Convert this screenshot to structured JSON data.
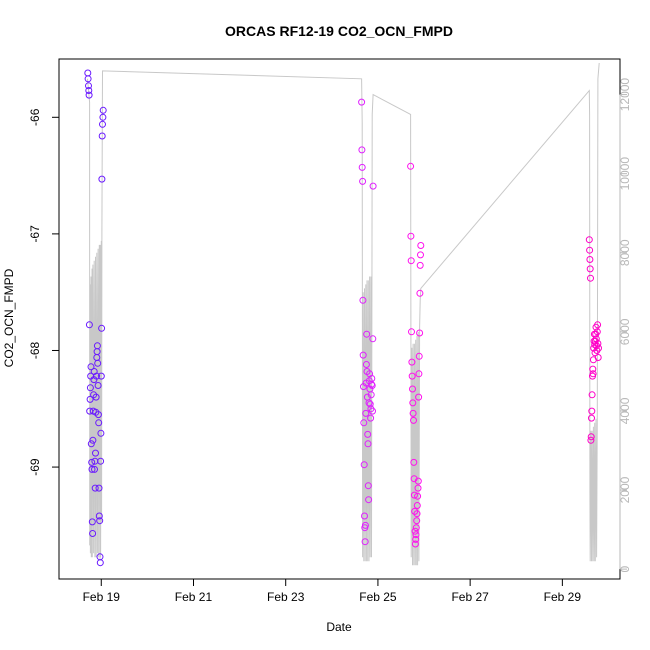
{
  "chart_data": {
    "type": "scatter",
    "title": "ORCAS RF12-19 CO2_OCN_FMPD",
    "xlabel": "Date",
    "ylabel": "CO2_OCN_FMPD",
    "xlim": [
      "2016-02-18T02:00",
      "2016-03-01T06:00"
    ],
    "ylim": [
      -69.96,
      -65.5
    ],
    "y2lim": [
      -250,
      12900
    ],
    "x_ticks": [
      {
        "date": "2016-02-19",
        "label": "Feb 19"
      },
      {
        "date": "2016-02-21",
        "label": "Feb 21"
      },
      {
        "date": "2016-02-23",
        "label": "Feb 23"
      },
      {
        "date": "2016-02-25",
        "label": "Feb 25"
      },
      {
        "date": "2016-02-27",
        "label": "Feb 27"
      },
      {
        "date": "2016-02-29",
        "label": "Feb 29"
      }
    ],
    "y_ticks": [
      {
        "value": -66,
        "label": "-66"
      },
      {
        "value": -67,
        "label": "-67"
      },
      {
        "value": -68,
        "label": "-68"
      },
      {
        "value": -69,
        "label": "-69"
      }
    ],
    "y2_ticks": [
      {
        "value": 0,
        "label": "0"
      },
      {
        "value": 2000,
        "label": "2000"
      },
      {
        "value": 4000,
        "label": "4000"
      },
      {
        "value": 6000,
        "label": "6000"
      },
      {
        "value": 8000,
        "label": "8000"
      },
      {
        "value": 10000,
        "label": "10000"
      },
      {
        "value": 12000,
        "label": "12000"
      }
    ],
    "colors": {
      "point_start": "#5500ff",
      "point_end": "#ff00cc",
      "altitude_line": "#c8c8c8",
      "right_axis": "#b8b8b8",
      "axis": "#000000"
    },
    "grid": false,
    "legend": "none",
    "series": [
      {
        "flight": 1,
        "color": "#6a1aff",
        "points": [
          [
            "2016-02-18T17:00",
            -65.62
          ],
          [
            "2016-02-18T17:10",
            -65.67
          ],
          [
            "2016-02-18T17:20",
            -65.73
          ],
          [
            "2016-02-18T17:30",
            -65.77
          ],
          [
            "2016-02-18T17:40",
            -65.81
          ],
          [
            "2016-02-18T17:50",
            -67.78
          ],
          [
            "2016-02-18T18:00",
            -68.52
          ],
          [
            "2016-02-18T18:10",
            -68.42
          ],
          [
            "2016-02-18T18:20",
            -68.32
          ],
          [
            "2016-02-18T18:30",
            -68.22
          ],
          [
            "2016-02-18T18:40",
            -68.14
          ],
          [
            "2016-02-18T18:50",
            -68.8
          ],
          [
            "2016-02-18T19:00",
            -68.96
          ],
          [
            "2016-02-18T19:10",
            -69.02
          ],
          [
            "2016-02-18T19:20",
            -69.47
          ],
          [
            "2016-02-18T19:30",
            -69.57
          ],
          [
            "2016-02-18T19:40",
            -68.77
          ],
          [
            "2016-02-18T19:50",
            -68.52
          ],
          [
            "2016-02-18T20:00",
            -68.38
          ],
          [
            "2016-02-18T20:10",
            -68.25
          ],
          [
            "2016-02-18T20:20",
            -68.18
          ],
          [
            "2016-02-18T20:30",
            -69.02
          ],
          [
            "2016-02-18T20:40",
            -68.95
          ],
          [
            "2016-02-18T20:50",
            -69.18
          ],
          [
            "2016-02-18T21:00",
            -68.88
          ],
          [
            "2016-02-18T21:10",
            -68.53
          ],
          [
            "2016-02-18T21:20",
            -68.4
          ],
          [
            "2016-02-18T21:30",
            -68.22
          ],
          [
            "2016-02-18T21:40",
            -68.06
          ],
          [
            "2016-02-18T21:50",
            -68.01
          ],
          [
            "2016-02-18T22:00",
            -67.96
          ],
          [
            "2016-02-18T22:10",
            -68.11
          ],
          [
            "2016-02-18T22:20",
            -68.3
          ],
          [
            "2016-02-18T22:30",
            -68.55
          ],
          [
            "2016-02-18T22:40",
            -68.62
          ],
          [
            "2016-02-18T22:50",
            -69.18
          ],
          [
            "2016-02-18T23:00",
            -69.42
          ],
          [
            "2016-02-18T23:10",
            -69.46
          ],
          [
            "2016-02-18T23:20",
            -69.77
          ],
          [
            "2016-02-18T23:30",
            -69.82
          ],
          [
            "2016-02-18T23:40",
            -68.95
          ],
          [
            "2016-02-18T23:50",
            -68.71
          ],
          [
            "2016-02-19T00:00",
            -68.22
          ],
          [
            "2016-02-19T00:10",
            -67.81
          ],
          [
            "2016-02-19T00:20",
            -66.53
          ],
          [
            "2016-02-19T00:30",
            -66.16
          ],
          [
            "2016-02-19T00:40",
            -66.06
          ],
          [
            "2016-02-19T00:50",
            -66.0
          ],
          [
            "2016-02-19T01:00",
            -65.94
          ]
        ]
      },
      {
        "flight": 2,
        "color": "#e020ff",
        "points": [
          [
            "2016-02-24T15:30",
            -65.87
          ],
          [
            "2016-02-24T15:40",
            -66.28
          ],
          [
            "2016-02-24T15:50",
            -66.43
          ],
          [
            "2016-02-24T16:00",
            -66.55
          ],
          [
            "2016-02-24T16:10",
            -67.57
          ],
          [
            "2016-02-24T16:20",
            -68.04
          ],
          [
            "2016-02-24T16:30",
            -68.31
          ],
          [
            "2016-02-24T16:40",
            -68.62
          ],
          [
            "2016-02-24T16:50",
            -68.98
          ],
          [
            "2016-02-24T17:00",
            -69.42
          ],
          [
            "2016-02-24T17:10",
            -69.52
          ],
          [
            "2016-02-24T17:20",
            -69.64
          ],
          [
            "2016-02-24T17:30",
            -69.5
          ],
          [
            "2016-02-24T17:40",
            -68.54
          ],
          [
            "2016-02-24T17:50",
            -68.28
          ],
          [
            "2016-02-24T18:00",
            -68.12
          ],
          [
            "2016-02-24T18:10",
            -67.86
          ],
          [
            "2016-02-24T18:20",
            -68.18
          ],
          [
            "2016-02-24T18:30",
            -68.4
          ],
          [
            "2016-02-24T18:40",
            -68.72
          ],
          [
            "2016-02-24T18:50",
            -68.8
          ],
          [
            "2016-02-24T19:00",
            -69.16
          ],
          [
            "2016-02-24T19:10",
            -69.28
          ],
          [
            "2016-02-24T19:20",
            -68.45
          ],
          [
            "2016-02-24T19:30",
            -68.26
          ],
          [
            "2016-02-24T19:40",
            -68.2
          ],
          [
            "2016-02-24T19:50",
            -68.33
          ],
          [
            "2016-02-24T20:00",
            -68.46
          ],
          [
            "2016-02-24T20:10",
            -68.58
          ],
          [
            "2016-02-24T20:20",
            -68.5
          ],
          [
            "2016-02-24T20:30",
            -68.38
          ],
          [
            "2016-02-24T20:40",
            -68.29
          ],
          [
            "2016-02-24T20:50",
            -68.24
          ],
          [
            "2016-02-24T21:00",
            -68.3
          ],
          [
            "2016-02-24T21:10",
            -68.52
          ],
          [
            "2016-02-24T21:20",
            -67.9
          ],
          [
            "2016-02-24T21:30",
            -66.59
          ]
        ]
      },
      {
        "flight": 3,
        "color": "#ff10ee",
        "points": [
          [
            "2016-02-25T17:00",
            -66.42
          ],
          [
            "2016-02-25T17:10",
            -67.02
          ],
          [
            "2016-02-25T17:20",
            -67.23
          ],
          [
            "2016-02-25T17:30",
            -67.84
          ],
          [
            "2016-02-25T17:40",
            -68.1
          ],
          [
            "2016-02-25T17:50",
            -68.22
          ],
          [
            "2016-02-25T18:00",
            -68.33
          ],
          [
            "2016-02-25T18:10",
            -68.45
          ],
          [
            "2016-02-25T18:20",
            -68.54
          ],
          [
            "2016-02-25T18:30",
            -68.6
          ],
          [
            "2016-02-25T18:40",
            -68.96
          ],
          [
            "2016-02-25T18:50",
            -69.1
          ],
          [
            "2016-02-25T19:00",
            -69.24
          ],
          [
            "2016-02-25T19:10",
            -69.38
          ],
          [
            "2016-02-25T19:20",
            -69.55
          ],
          [
            "2016-02-25T19:30",
            -69.66
          ],
          [
            "2016-02-25T19:40",
            -69.62
          ],
          [
            "2016-02-25T19:50",
            -69.58
          ],
          [
            "2016-02-25T20:00",
            -69.52
          ],
          [
            "2016-02-25T20:10",
            -69.46
          ],
          [
            "2016-02-25T20:20",
            -69.4
          ],
          [
            "2016-02-25T20:30",
            -69.33
          ],
          [
            "2016-02-25T20:40",
            -69.25
          ],
          [
            "2016-02-25T20:50",
            -69.18
          ],
          [
            "2016-02-25T21:00",
            -69.12
          ],
          [
            "2016-02-25T21:10",
            -68.4
          ],
          [
            "2016-02-25T21:20",
            -68.2
          ],
          [
            "2016-02-25T21:30",
            -68.05
          ],
          [
            "2016-02-25T21:40",
            -67.85
          ],
          [
            "2016-02-25T21:50",
            -67.51
          ],
          [
            "2016-02-25T22:00",
            -67.27
          ],
          [
            "2016-02-25T22:10",
            -67.18
          ],
          [
            "2016-02-25T22:20",
            -67.1
          ]
        ]
      },
      {
        "flight": 4,
        "color": "#ff00c8",
        "points": [
          [
            "2016-02-29T14:00",
            -67.05
          ],
          [
            "2016-02-29T14:10",
            -67.14
          ],
          [
            "2016-02-29T14:20",
            -67.22
          ],
          [
            "2016-02-29T14:30",
            -67.3
          ],
          [
            "2016-02-29T14:40",
            -67.38
          ],
          [
            "2016-02-29T14:50",
            -68.77
          ],
          [
            "2016-02-29T15:00",
            -68.74
          ],
          [
            "2016-02-29T15:10",
            -68.58
          ],
          [
            "2016-02-29T15:20",
            -68.52
          ],
          [
            "2016-02-29T15:30",
            -68.38
          ],
          [
            "2016-02-29T15:40",
            -68.22
          ],
          [
            "2016-02-29T15:50",
            -68.16
          ],
          [
            "2016-02-29T16:00",
            -68.2
          ],
          [
            "2016-02-29T16:10",
            -68.08
          ],
          [
            "2016-02-29T16:20",
            -67.98
          ],
          [
            "2016-02-29T16:30",
            -67.92
          ],
          [
            "2016-02-29T16:40",
            -67.86
          ],
          [
            "2016-02-29T16:50",
            -67.95
          ],
          [
            "2016-02-29T17:00",
            -68.02
          ],
          [
            "2016-02-29T17:10",
            -67.92
          ],
          [
            "2016-02-29T17:20",
            -67.86
          ],
          [
            "2016-02-29T17:30",
            -67.8
          ],
          [
            "2016-02-29T17:40",
            -67.9
          ],
          [
            "2016-02-29T17:50",
            -67.96
          ],
          [
            "2016-02-29T18:00",
            -68.0
          ],
          [
            "2016-02-29T18:10",
            -67.84
          ],
          [
            "2016-02-29T18:20",
            -67.78
          ],
          [
            "2016-02-29T18:30",
            -67.94
          ],
          [
            "2016-02-29T18:40",
            -68.06
          ],
          [
            "2016-02-29T18:50",
            -67.98
          ]
        ]
      }
    ],
    "altitude_line": [
      [
        "2016-02-18T16:50",
        12400
      ],
      [
        "2016-02-18T17:55",
        11800
      ],
      [
        "2016-02-18T18:00",
        600
      ],
      [
        "2016-02-18T18:10",
        7200
      ],
      [
        "2016-02-18T18:20",
        400
      ],
      [
        "2016-02-18T18:40",
        7400
      ],
      [
        "2016-02-18T18:50",
        300
      ],
      [
        "2016-02-18T19:10",
        7600
      ],
      [
        "2016-02-18T19:20",
        300
      ],
      [
        "2016-02-18T19:40",
        7700
      ],
      [
        "2016-02-18T20:00",
        400
      ],
      [
        "2016-02-18T20:20",
        7800
      ],
      [
        "2016-02-18T20:40",
        300
      ],
      [
        "2016-02-18T21:00",
        7900
      ],
      [
        "2016-02-18T21:20",
        300
      ],
      [
        "2016-02-18T21:40",
        8000
      ],
      [
        "2016-02-18T22:00",
        400
      ],
      [
        "2016-02-18T22:20",
        8100
      ],
      [
        "2016-02-18T22:40",
        300
      ],
      [
        "2016-02-18T23:00",
        8200
      ],
      [
        "2016-02-18T23:20",
        250
      ],
      [
        "2016-02-18T23:30",
        8200
      ],
      [
        "2016-02-18T23:40",
        300
      ],
      [
        "2016-02-19T00:00",
        8300
      ],
      [
        "2016-02-19T00:10",
        1200
      ],
      [
        "2016-02-19T00:20",
        8500
      ],
      [
        "2016-02-19T00:40",
        12600
      ],
      [
        "2016-02-24T15:30",
        12400
      ],
      [
        "2016-02-24T15:50",
        11300
      ],
      [
        "2016-02-24T16:00",
        300
      ],
      [
        "2016-02-24T16:20",
        7000
      ],
      [
        "2016-02-24T16:40",
        200
      ],
      [
        "2016-02-24T17:00",
        7100
      ],
      [
        "2016-02-24T17:20",
        200
      ],
      [
        "2016-02-24T17:40",
        7200
      ],
      [
        "2016-02-24T18:00",
        200
      ],
      [
        "2016-02-24T18:20",
        7300
      ],
      [
        "2016-02-24T18:40",
        200
      ],
      [
        "2016-02-24T19:00",
        7300
      ],
      [
        "2016-02-24T19:20",
        200
      ],
      [
        "2016-02-24T19:40",
        7400
      ],
      [
        "2016-02-24T20:00",
        300
      ],
      [
        "2016-02-24T20:20",
        7400
      ],
      [
        "2016-02-24T20:40",
        300
      ],
      [
        "2016-02-24T21:00",
        11500
      ],
      [
        "2016-02-24T21:30",
        12000
      ],
      [
        "2016-02-25T17:00",
        11500
      ],
      [
        "2016-02-25T17:20",
        300
      ],
      [
        "2016-02-25T17:40",
        5600
      ],
      [
        "2016-02-25T18:00",
        100
      ],
      [
        "2016-02-25T18:20",
        5700
      ],
      [
        "2016-02-25T18:40",
        100
      ],
      [
        "2016-02-25T19:00",
        5700
      ],
      [
        "2016-02-25T19:20",
        100
      ],
      [
        "2016-02-25T19:40",
        5800
      ],
      [
        "2016-02-25T20:00",
        100
      ],
      [
        "2016-02-25T20:20",
        5900
      ],
      [
        "2016-02-25T20:40",
        100
      ],
      [
        "2016-02-25T21:00",
        6000
      ],
      [
        "2016-02-25T21:20",
        200
      ],
      [
        "2016-02-25T21:40",
        6100
      ],
      [
        "2016-02-25T22:00",
        6800
      ],
      [
        "2016-02-25T22:20",
        7100
      ],
      [
        "2016-02-29T14:00",
        12100
      ],
      [
        "2016-02-29T14:10",
        11500
      ],
      [
        "2016-02-29T14:20",
        2000
      ],
      [
        "2016-02-29T14:30",
        200
      ],
      [
        "2016-02-29T14:50",
        3500
      ],
      [
        "2016-02-29T15:10",
        200
      ],
      [
        "2016-02-29T15:30",
        3500
      ],
      [
        "2016-02-29T15:50",
        200
      ],
      [
        "2016-02-29T16:10",
        3600
      ],
      [
        "2016-02-29T16:30",
        200
      ],
      [
        "2016-02-29T16:50",
        3700
      ],
      [
        "2016-02-29T17:10",
        200
      ],
      [
        "2016-02-29T17:30",
        3800
      ],
      [
        "2016-02-29T17:50",
        300
      ],
      [
        "2016-02-29T18:10",
        4000
      ],
      [
        "2016-02-29T18:30",
        12400
      ],
      [
        "2016-02-29T19:10",
        12800
      ]
    ]
  }
}
